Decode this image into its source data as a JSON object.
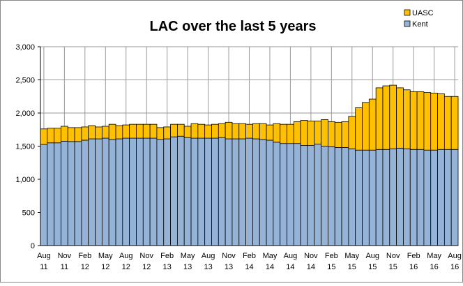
{
  "chart_data": {
    "type": "stacked_bar",
    "title": "LAC over the last 5 years",
    "categories": [
      "Aug 11",
      null,
      null,
      "Nov 11",
      null,
      null,
      "Feb 12",
      null,
      null,
      "May 12",
      null,
      null,
      "Aug 12",
      null,
      null,
      "Nov 12",
      null,
      null,
      "Feb 13",
      null,
      null,
      "May 13",
      null,
      null,
      "Aug 13",
      null,
      null,
      "Nov 13",
      null,
      null,
      "Feb 14",
      null,
      null,
      "May 14",
      null,
      null,
      "Aug 14",
      null,
      null,
      "Nov 14",
      null,
      null,
      "Feb 15",
      null,
      null,
      "May 15",
      null,
      null,
      "Aug 15",
      null,
      null,
      "Nov 15",
      null,
      null,
      "Feb 16",
      null,
      null,
      "May 16",
      null,
      null,
      "Aug 16"
    ],
    "series": [
      {
        "name": "Kent",
        "color": "#95b3d7",
        "values": [
          1525,
          1550,
          1550,
          1575,
          1570,
          1570,
          1590,
          1610,
          1610,
          1620,
          1600,
          1610,
          1620,
          1620,
          1620,
          1620,
          1620,
          1600,
          1610,
          1640,
          1650,
          1630,
          1620,
          1620,
          1620,
          1620,
          1630,
          1610,
          1610,
          1610,
          1620,
          1610,
          1600,
          1590,
          1560,
          1540,
          1540,
          1540,
          1510,
          1510,
          1530,
          1500,
          1490,
          1480,
          1480,
          1460,
          1440,
          1440,
          1440,
          1450,
          1450,
          1460,
          1470,
          1460,
          1450,
          1450,
          1440,
          1440,
          1450,
          1450,
          1450
        ]
      },
      {
        "name": "UASC",
        "color": "#ffc000",
        "values": [
          235,
          220,
          220,
          225,
          210,
          210,
          200,
          200,
          180,
          180,
          230,
          200,
          200,
          210,
          210,
          210,
          210,
          180,
          180,
          190,
          180,
          170,
          220,
          210,
          200,
          210,
          210,
          250,
          230,
          230,
          210,
          230,
          240,
          230,
          280,
          290,
          290,
          330,
          380,
          370,
          350,
          400,
          380,
          380,
          390,
          490,
          640,
          720,
          770,
          930,
          960,
          960,
          910,
          890,
          870,
          870,
          870,
          860,
          840,
          800,
          800
        ]
      }
    ],
    "ylim": [
      0,
      3000
    ],
    "yticks": [
      0,
      500,
      {
        "value": 1000,
        "label": "1,000"
      },
      {
        "value": 1500,
        "label": "1,500"
      },
      {
        "value": 2000,
        "label": "2,000"
      },
      {
        "value": 2500,
        "label": "2,500"
      },
      {
        "value": 3000,
        "label": "3,000"
      }
    ],
    "grid": true,
    "legend": "top-right"
  }
}
